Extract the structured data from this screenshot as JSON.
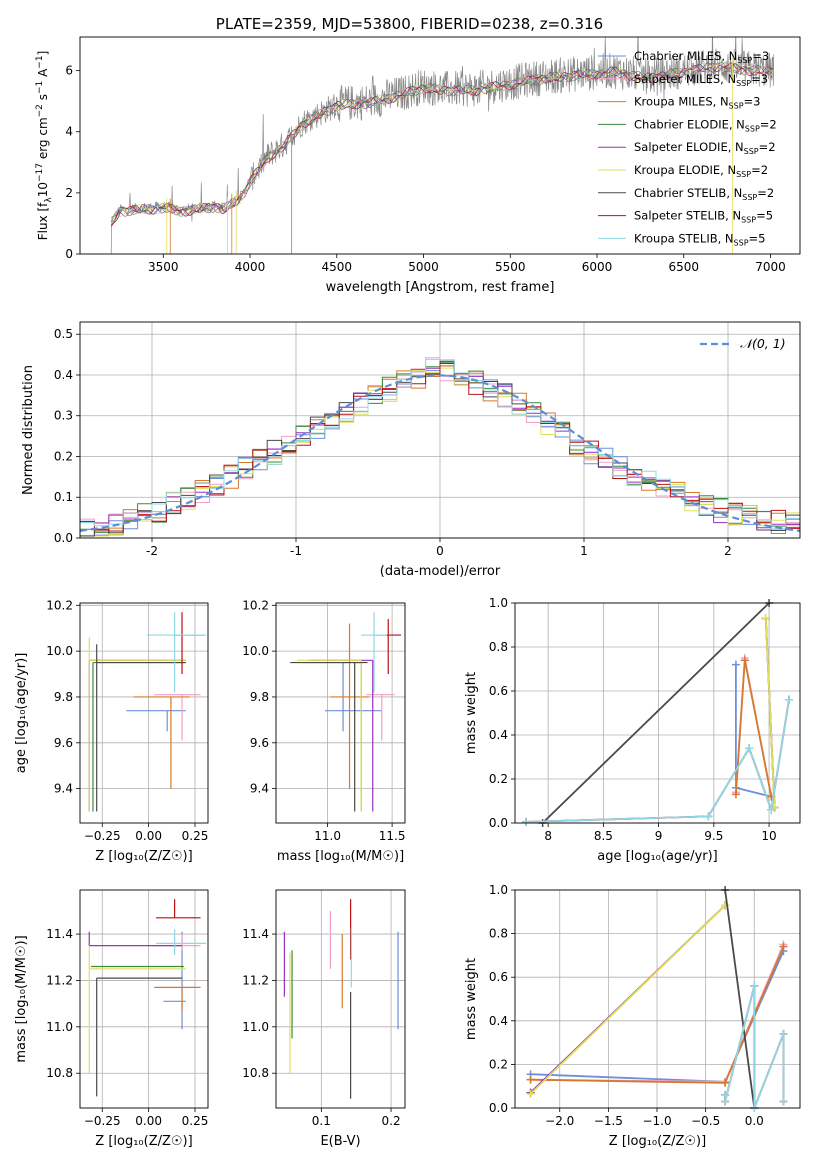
{
  "title": "PLATE=2359, MJD=53800, FIBERID=0238, z=0.316",
  "colors": {
    "Chabrier MILES": "#6e8fda",
    "Salpeter MILES": "#f2a0c8",
    "Kroupa MILES": "#d57a2c",
    "Chabrier ELODIE": "#3d8a3d",
    "Salpeter ELODIE": "#9a2fc0",
    "Kroupa ELODIE": "#dfe05a",
    "Chabrier STELIB": "#4a4a4a",
    "Salpeter STELIB": "#bb1111",
    "Kroupa STELIB": "#8fd8e6",
    "normal": "#5b8fd9",
    "grid": "#b0b0b0"
  },
  "chart_data": [
    {
      "id": "spectrum",
      "type": "line",
      "title": "PLATE=2359, MJD=53800, FIBERID=0238, z=0.316",
      "xlabel": "wavelength [Angstrom, rest frame]",
      "ylabel": "Flux [f",
      "ylabel_sub": "λ",
      "ylabel_rest": "10",
      "ylabel_exp": "−17",
      "ylabel_units": "erg cm",
      "ylabel_units_exp": "−2",
      "ylabel_units2": "s",
      "ylabel_units2_exp": "−1",
      "ylabel_units3": "A",
      "ylabel_units3_exp": "−1",
      "ylabel_close": "]",
      "xlim": [
        3020,
        7170
      ],
      "ylim": [
        0,
        7.1
      ],
      "xticks": [
        3500,
        4000,
        4500,
        5000,
        5500,
        6000,
        6500,
        7000
      ],
      "yticks": [
        0,
        2,
        4,
        6
      ],
      "grid": false,
      "legend_position": "top-right",
      "legend": [
        {
          "label": "Chabrier MILES, N",
          "sub": "SSP",
          "tail": "=3",
          "color": "#6e8fda"
        },
        {
          "label": "Salpeter MILES, N",
          "sub": "SSP",
          "tail": "=3",
          "color": "#f2a0c8"
        },
        {
          "label": "Kroupa MILES, N",
          "sub": "SSP",
          "tail": "=3",
          "color": "#d57a2c"
        },
        {
          "label": "Chabrier ELODIE, N",
          "sub": "SSP",
          "tail": "=2",
          "color": "#3d8a3d"
        },
        {
          "label": "Salpeter ELODIE, N",
          "sub": "SSP",
          "tail": "=2",
          "color": "#9a2fc0"
        },
        {
          "label": "Kroupa ELODIE, N",
          "sub": "SSP",
          "tail": "=2",
          "color": "#dfe05a"
        },
        {
          "label": "Chabrier STELIB, N",
          "sub": "SSP",
          "tail": "=2",
          "color": "#4a4a4a"
        },
        {
          "label": "Salpeter STELIB, N",
          "sub": "SSP",
          "tail": "=5",
          "color": "#bb1111"
        },
        {
          "label": "Kroupa STELIB, N",
          "sub": "SSP",
          "tail": "=5",
          "color": "#8fd8e6"
        }
      ],
      "spectrum_start": 3200,
      "spectrum_end": 7020,
      "continuum_x": [
        3200,
        3250,
        3500,
        3600,
        3700,
        3800,
        3850,
        3950,
        4000,
        4100,
        4200,
        4300,
        4500,
        4700,
        4900,
        5000,
        5100,
        5300,
        5500,
        5700,
        5900,
        6100,
        6300,
        6500,
        6700,
        6800,
        7020
      ],
      "continuum_y": [
        1.05,
        1.45,
        1.55,
        1.45,
        1.5,
        1.6,
        1.5,
        1.9,
        2.4,
        3.2,
        3.6,
        4.3,
        4.9,
        5.0,
        5.3,
        5.5,
        5.4,
        5.4,
        5.6,
        5.8,
        5.9,
        6.0,
        5.8,
        6.0,
        6.2,
        6.1,
        6.0
      ],
      "drop_lines_x": [
        3520,
        3540,
        3870,
        3895,
        3920,
        4240,
        6780
      ]
    },
    {
      "id": "residuals",
      "type": "line",
      "xlabel": "(data-model)/error",
      "ylabel": "Normed distribution",
      "xlim": [
        -2.5,
        2.5
      ],
      "ylim": [
        0,
        0.53
      ],
      "xticks": [
        -2,
        -1,
        0,
        1,
        2
      ],
      "yticks": [
        0.0,
        0.1,
        0.2,
        0.3,
        0.4,
        0.5
      ],
      "grid": true,
      "legend_position": "top-right",
      "legend_label": "𝒩(0, 1)",
      "bin_width": 0.1,
      "histogram_envelope_x": [
        -2.5,
        -2.0,
        -1.5,
        -1.0,
        -0.5,
        -0.2,
        0.0,
        0.2,
        0.5,
        1.0,
        1.5,
        2.0,
        2.5
      ],
      "histogram_envelope_y": [
        0.015,
        0.06,
        0.14,
        0.24,
        0.34,
        0.39,
        0.42,
        0.39,
        0.34,
        0.22,
        0.13,
        0.06,
        0.03
      ]
    },
    {
      "id": "age-vs-Z",
      "type": "scatter",
      "xlabel": "Z [log₁₀(Z/Z☉)]",
      "ylabel": "age  [log₁₀(age/yr)]",
      "xlim": [
        -0.37,
        0.32
      ],
      "ylim": [
        9.25,
        10.21
      ],
      "xticks": [
        -0.25,
        0.0,
        0.25
      ],
      "xtick_labels": [
        "−0.25",
        "0.00",
        "0.25"
      ],
      "yticks": [
        9.4,
        9.6,
        9.8,
        10.0,
        10.2
      ],
      "grid": true,
      "errorbars": [
        {
          "series": "Chabrier MILES",
          "x": 0.1,
          "xerr": [
            0.22,
            0.1
          ],
          "y": 9.74,
          "yerr": [
            0.09,
            0.0
          ]
        },
        {
          "series": "Salpeter MILES",
          "x": 0.18,
          "xerr": [
            0.15,
            0.1
          ],
          "y": 9.81,
          "yerr": [
            0.2,
            0.0
          ]
        },
        {
          "series": "Kroupa MILES",
          "x": 0.12,
          "xerr": [
            0.2,
            0.1
          ],
          "y": 9.8,
          "yerr": [
            0.4,
            0.0
          ]
        },
        {
          "series": "Chabrier ELODIE",
          "x": -0.3,
          "xerr": [
            0.0,
            0.5
          ],
          "y": 9.95,
          "yerr": [
            0.65,
            0.0
          ]
        },
        {
          "series": "Salpeter ELODIE",
          "x": -0.32,
          "xerr": [
            0.0,
            0.52
          ],
          "y": 9.96,
          "yerr": [
            0.66,
            0.0
          ]
        },
        {
          "series": "Kroupa ELODIE",
          "x": -0.32,
          "xerr": [
            0.0,
            0.52
          ],
          "y": 9.96,
          "yerr": [
            0.66,
            0.1
          ]
        },
        {
          "series": "Chabrier STELIB",
          "x": -0.28,
          "xerr": [
            0.0,
            0.48
          ],
          "y": 9.95,
          "yerr": [
            0.65,
            0.08
          ]
        },
        {
          "series": "Salpeter STELIB",
          "x": 0.18,
          "xerr": [
            0.05,
            0.12
          ],
          "y": 10.07,
          "yerr": [
            0.17,
            0.1
          ]
        },
        {
          "series": "Kroupa STELIB",
          "x": 0.14,
          "xerr": [
            0.15,
            0.17
          ],
          "y": 10.07,
          "yerr": [
            0.25,
            0.1
          ]
        }
      ]
    },
    {
      "id": "age-vs-mass",
      "type": "scatter",
      "xlabel": "mass [log₁₀(M/M☉)]",
      "xlim": [
        10.6,
        11.6
      ],
      "ylim": [
        9.25,
        10.21
      ],
      "xticks": [
        11.0,
        11.5
      ],
      "xtick_labels": [
        "11.0",
        "11.5"
      ],
      "yticks": [
        9.4,
        9.6,
        9.8,
        10.0,
        10.2
      ],
      "grid": true,
      "errorbars": [
        {
          "series": "Chabrier MILES",
          "x": 11.12,
          "xerr": [
            0.14,
            0.3
          ],
          "y": 9.74,
          "yerr": [
            0.09,
            0.21
          ]
        },
        {
          "series": "Salpeter MILES",
          "x": 11.42,
          "xerr": [
            0.12,
            0.1
          ],
          "y": 9.81,
          "yerr": [
            0.2,
            0.0
          ]
        },
        {
          "series": "Kroupa MILES",
          "x": 11.17,
          "xerr": [
            0.15,
            0.15
          ],
          "y": 9.8,
          "yerr": [
            0.4,
            0.32
          ]
        },
        {
          "series": "Chabrier ELODIE",
          "x": 11.26,
          "xerr": [
            0.45,
            0.0
          ],
          "y": 9.95,
          "yerr": [
            0.65,
            0.0
          ]
        },
        {
          "series": "Salpeter ELODIE",
          "x": 11.35,
          "xerr": [
            0.5,
            0.0
          ],
          "y": 9.96,
          "yerr": [
            0.66,
            0.0
          ]
        },
        {
          "series": "Kroupa ELODIE",
          "x": 11.26,
          "xerr": [
            0.5,
            0.0
          ],
          "y": 9.96,
          "yerr": [
            0.66,
            0.0
          ]
        },
        {
          "series": "Chabrier STELIB",
          "x": 11.21,
          "xerr": [
            0.5,
            0.1
          ],
          "y": 9.95,
          "yerr": [
            0.65,
            0.0
          ]
        },
        {
          "series": "Salpeter STELIB",
          "x": 11.47,
          "xerr": [
            0.1,
            0.1
          ],
          "y": 10.07,
          "yerr": [
            0.17,
            0.07
          ]
        },
        {
          "series": "Kroupa STELIB",
          "x": 11.36,
          "xerr": [
            0.1,
            0.1
          ],
          "y": 10.07,
          "yerr": [
            0.25,
            0.1
          ]
        }
      ]
    },
    {
      "id": "mass-weight-vs-age",
      "type": "line",
      "xlabel": "age  [log₁₀(age/yr)]",
      "ylabel": "mass weight",
      "xlim": [
        7.7,
        10.28
      ],
      "ylim": [
        0,
        1.0
      ],
      "xticks": [
        8.0,
        8.5,
        9.0,
        9.5,
        10.0
      ],
      "yticks": [
        0.0,
        0.2,
        0.4,
        0.6,
        0.8,
        1.0
      ],
      "grid": true,
      "series": [
        {
          "name": "Chabrier MILES",
          "x": [
            9.7,
            9.7,
            10.02
          ],
          "y": [
            0.72,
            0.16,
            0.12
          ]
        },
        {
          "name": "Salpeter MILES",
          "x": [
            9.7,
            9.78,
            10.02
          ],
          "y": [
            0.14,
            0.75,
            0.12
          ]
        },
        {
          "name": "Kroupa MILES",
          "x": [
            9.7,
            9.78,
            10.02
          ],
          "y": [
            0.13,
            0.74,
            0.12
          ]
        },
        {
          "name": "Chabrier ELODIE",
          "x": [
            9.97,
            10.05
          ],
          "y": [
            0.93,
            0.07
          ]
        },
        {
          "name": "Salpeter ELODIE",
          "x": [
            9.97,
            10.05
          ],
          "y": [
            0.93,
            0.07
          ]
        },
        {
          "name": "Kroupa ELODIE",
          "x": [
            9.97,
            10.05
          ],
          "y": [
            0.93,
            0.07
          ]
        },
        {
          "name": "Chabrier STELIB",
          "x": [
            7.95,
            10.0
          ],
          "y": [
            0.0,
            1.0
          ]
        },
        {
          "name": "Salpeter STELIB",
          "x": [
            7.8,
            9.45,
            9.82,
            10.02,
            10.18
          ],
          "y": [
            0.005,
            0.03,
            0.34,
            0.06,
            0.56
          ]
        },
        {
          "name": "Kroupa STELIB",
          "x": [
            7.8,
            9.45,
            9.82,
            10.02,
            10.18
          ],
          "y": [
            0.005,
            0.03,
            0.34,
            0.06,
            0.56
          ]
        }
      ]
    },
    {
      "id": "mass-vs-Z",
      "type": "scatter",
      "xlabel": "Z [log₁₀(Z/Z☉)]",
      "ylabel": "mass [log₁₀(M/M☉)]",
      "xlim": [
        -0.37,
        0.32
      ],
      "ylim": [
        10.65,
        11.59
      ],
      "xticks": [
        -0.25,
        0.0,
        0.25
      ],
      "xtick_labels": [
        "−0.25",
        "0.00",
        "0.25"
      ],
      "yticks": [
        10.8,
        11.0,
        11.2,
        11.4
      ],
      "grid": true,
      "errorbars": [
        {
          "series": "Chabrier MILES",
          "x": 0.18,
          "xerr": [
            0.1,
            0.02
          ],
          "y": 11.11,
          "yerr": [
            0.12,
            0.3
          ]
        },
        {
          "series": "Salpeter MILES",
          "x": 0.18,
          "xerr": [
            0.15,
            0.1
          ],
          "y": 11.35,
          "yerr": [
            0.02,
            0.05
          ]
        },
        {
          "series": "Kroupa MILES",
          "x": 0.18,
          "xerr": [
            0.15,
            0.1
          ],
          "y": 11.17,
          "yerr": [
            0.1,
            0.0
          ]
        },
        {
          "series": "Chabrier ELODIE",
          "x": -0.31,
          "xerr": [
            0.0,
            0.5
          ],
          "y": 11.26,
          "yerr": [
            0.0,
            0.0
          ]
        },
        {
          "series": "Salpeter ELODIE",
          "x": -0.32,
          "xerr": [
            0.0,
            0.5
          ],
          "y": 11.35,
          "yerr": [
            0.0,
            0.06
          ]
        },
        {
          "series": "Kroupa ELODIE",
          "x": -0.32,
          "xerr": [
            0.0,
            0.52
          ],
          "y": 11.25,
          "yerr": [
            0.45,
            0.1
          ]
        },
        {
          "series": "Chabrier STELIB",
          "x": -0.28,
          "xerr": [
            0.0,
            0.46
          ],
          "y": 11.21,
          "yerr": [
            0.51,
            0.0
          ]
        },
        {
          "series": "Salpeter STELIB",
          "x": 0.14,
          "xerr": [
            0.1,
            0.14
          ],
          "y": 11.47,
          "yerr": [
            0.0,
            0.08
          ]
        },
        {
          "series": "Kroupa STELIB",
          "x": 0.14,
          "xerr": [
            0.1,
            0.17
          ],
          "y": 11.36,
          "yerr": [
            0.05,
            0.06
          ]
        }
      ]
    },
    {
      "id": "mass-vs-EBV",
      "type": "scatter",
      "xlabel": "E(B-V)",
      "xlim": [
        0.035,
        0.22
      ],
      "ylim": [
        10.65,
        11.59
      ],
      "xticks": [
        0.1,
        0.2
      ],
      "xtick_labels": [
        "0.1",
        "0.2"
      ],
      "yticks": [
        10.8,
        11.0,
        11.2,
        11.4
      ],
      "grid": true,
      "errorbars": [
        {
          "series": "Chabrier MILES",
          "x": 0.21,
          "y": 11.2,
          "yerr": [
            0.21,
            0.21
          ]
        },
        {
          "series": "Salpeter MILES",
          "x": 0.113,
          "y": 11.37,
          "yerr": [
            0.12,
            0.13
          ]
        },
        {
          "series": "Kroupa MILES",
          "x": 0.13,
          "y": 11.24,
          "yerr": [
            0.16,
            0.16
          ]
        },
        {
          "series": "Chabrier ELODIE",
          "x": 0.058,
          "y": 11.14,
          "yerr": [
            0.19,
            0.19
          ]
        },
        {
          "series": "Salpeter ELODIE",
          "x": 0.047,
          "y": 11.27,
          "yerr": [
            0.14,
            0.14
          ]
        },
        {
          "series": "Kroupa ELODIE",
          "x": 0.055,
          "y": 11.06,
          "yerr": [
            0.26,
            0.26
          ]
        },
        {
          "series": "Chabrier STELIB",
          "x": 0.142,
          "y": 10.92,
          "yerr": [
            0.23,
            0.23
          ]
        },
        {
          "series": "Salpeter STELIB",
          "x": 0.142,
          "y": 11.42,
          "yerr": [
            0.13,
            0.13
          ]
        },
        {
          "series": "Kroupa STELIB",
          "x": 0.143,
          "y": 11.3,
          "yerr": [
            0.13,
            0.13
          ]
        }
      ]
    },
    {
      "id": "mass-weight-vs-Z",
      "type": "line",
      "xlabel": "Z [log₁₀(Z/Z☉)]",
      "ylabel": "mass weight",
      "xlim": [
        -2.46,
        0.47
      ],
      "ylim": [
        0,
        1.0
      ],
      "xticks": [
        -2.0,
        -1.5,
        -1.0,
        -0.5,
        0.0
      ],
      "xtick_labels": [
        "−2.0",
        "−1.5",
        "−1.0",
        "−0.5",
        "0.0"
      ],
      "yticks": [
        0.0,
        0.2,
        0.4,
        0.6,
        0.8,
        1.0
      ],
      "grid": true,
      "series": [
        {
          "name": "Chabrier MILES",
          "x": [
            -2.3,
            -0.3,
            0.3
          ],
          "y": [
            0.155,
            0.12,
            0.72
          ]
        },
        {
          "name": "Salpeter MILES",
          "x": [
            -2.3,
            -0.3,
            0.3
          ],
          "y": [
            0.13,
            0.12,
            0.75
          ]
        },
        {
          "name": "Kroupa MILES",
          "x": [
            -2.3,
            -0.3,
            0.3
          ],
          "y": [
            0.13,
            0.115,
            0.74
          ]
        },
        {
          "name": "Chabrier ELODIE",
          "x": [
            -2.3,
            -0.3
          ],
          "y": [
            0.07,
            0.93
          ]
        },
        {
          "name": "Salpeter ELODIE",
          "x": [
            -2.3,
            -0.3
          ],
          "y": [
            0.07,
            0.93
          ]
        },
        {
          "name": "Kroupa ELODIE",
          "x": [
            -2.3,
            -0.3
          ],
          "y": [
            0.065,
            0.93
          ]
        },
        {
          "name": "Chabrier STELIB",
          "x": [
            -0.3,
            0.0
          ],
          "y": [
            1.0,
            0.0
          ]
        },
        {
          "name": "Salpeter STELIB",
          "x": [
            -0.3,
            -0.3,
            0.0,
            0.0,
            0.3,
            0.3
          ],
          "y": [
            0.06,
            0.03,
            0.56,
            0.0,
            0.34,
            0.03
          ]
        },
        {
          "name": "Kroupa STELIB",
          "x": [
            -0.3,
            -0.3,
            0.0,
            0.0,
            0.3,
            0.3
          ],
          "y": [
            0.06,
            0.03,
            0.56,
            0.0,
            0.34,
            0.03
          ]
        }
      ]
    }
  ]
}
